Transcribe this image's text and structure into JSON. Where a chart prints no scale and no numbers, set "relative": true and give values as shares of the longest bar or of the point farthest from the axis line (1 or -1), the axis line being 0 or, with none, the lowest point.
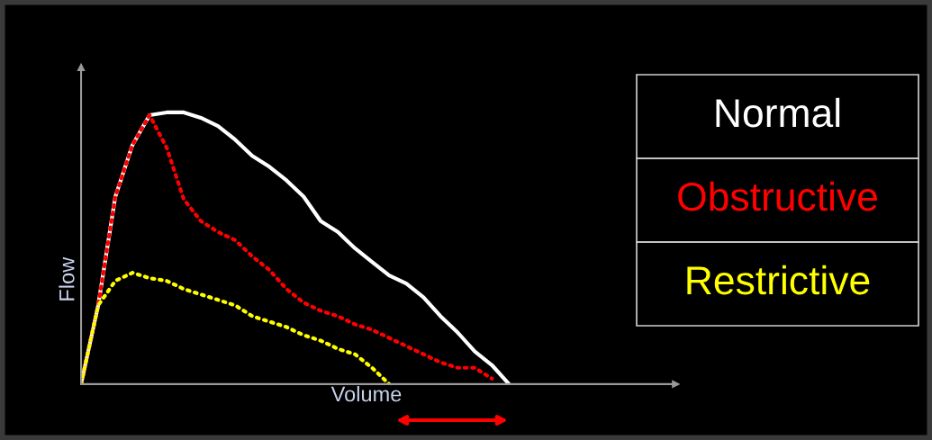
{
  "chart_data": {
    "type": "line",
    "relative": true,
    "xlabel": "Volume",
    "ylabel": "Flow",
    "legend": "right",
    "line_style": "dotted",
    "marker": "none",
    "grid": false,
    "categories": [
      null,
      null,
      null,
      null,
      null,
      null,
      null,
      null,
      null,
      null,
      null,
      null,
      null,
      null,
      null,
      null,
      null,
      null,
      null,
      null,
      null,
      null,
      null,
      null,
      null,
      null
    ],
    "series": [
      {
        "name": "Normal",
        "color": "#ffffff",
        "line_style": "solid",
        "values": [
          0,
          0.29,
          0.69,
          0.88,
          0.99,
          1.0,
          1.0,
          0.98,
          0.95,
          0.9,
          0.84,
          0.8,
          0.75,
          0.69,
          0.6,
          0.56,
          0.5,
          0.45,
          0.4,
          0.37,
          0.32,
          0.25,
          0.19,
          0.12,
          0.07,
          0
        ]
      },
      {
        "name": "Obstructive",
        "color": "#ff0000",
        "values": [
          0,
          0.29,
          0.69,
          0.88,
          0.99,
          0.87,
          0.68,
          0.6,
          0.56,
          0.53,
          0.47,
          0.42,
          0.35,
          0.3,
          0.27,
          0.25,
          0.22,
          0.2,
          0.17,
          0.14,
          0.11,
          0.08,
          0.06,
          0.06,
          0.02,
          null
        ]
      },
      {
        "name": "Restrictive",
        "color": "#ffff00",
        "values": [
          0,
          0.29,
          0.38,
          0.41,
          0.39,
          0.38,
          0.35,
          0.33,
          0.31,
          0.29,
          0.25,
          0.23,
          0.21,
          0.18,
          0.16,
          0.13,
          0.11,
          0.06,
          0.0,
          null,
          null,
          null,
          null,
          null,
          null,
          null
        ]
      }
    ]
  }
}
